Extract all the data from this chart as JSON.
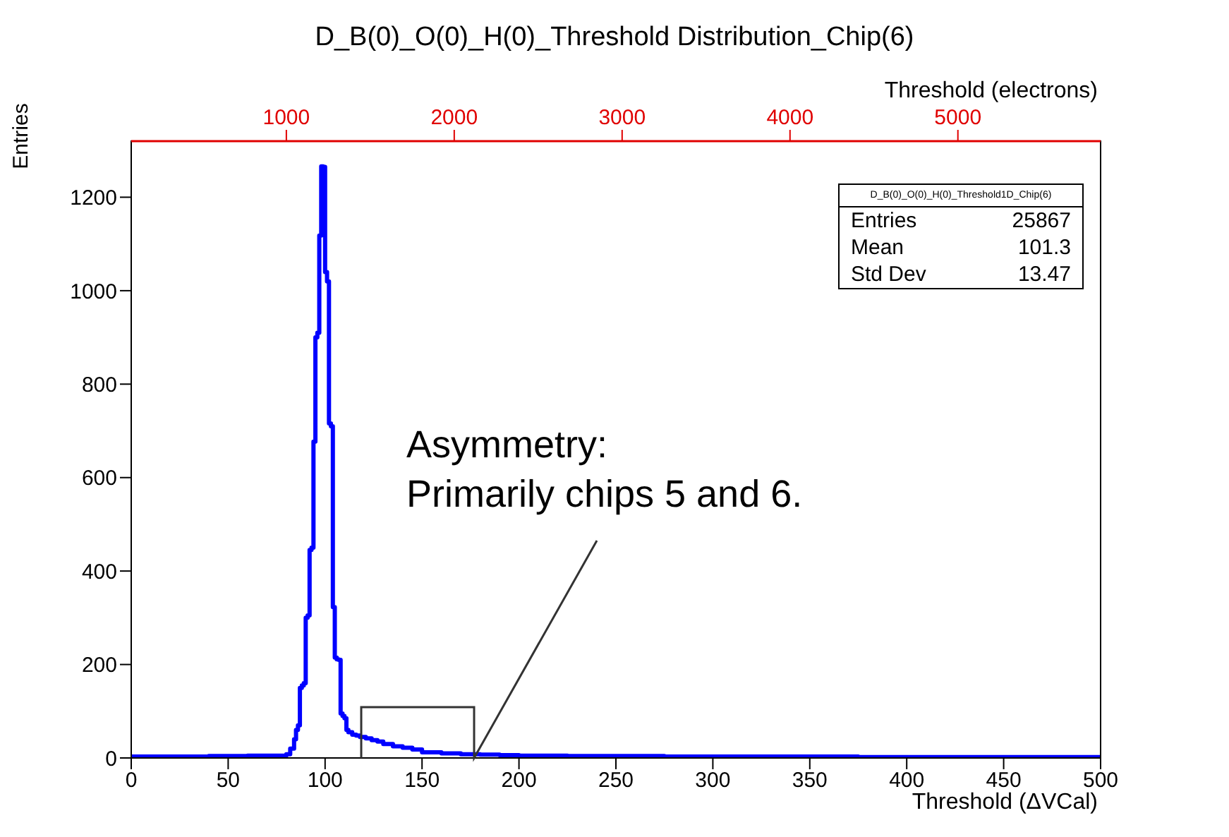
{
  "chart_data": {
    "type": "histogram",
    "title": "D_B(0)_O(0)_H(0)_Threshold Distribution_Chip(6)",
    "xlabel": "Threshold (ΔVCal)",
    "ylabel": "Entries",
    "x2label": "Threshold (electrons)",
    "bins": [
      0,
      20,
      40,
      60,
      80,
      82,
      84,
      85,
      86,
      87,
      88,
      89,
      90,
      91,
      92,
      93,
      94,
      95,
      96,
      97,
      98,
      99,
      100,
      101,
      102,
      103,
      104,
      105,
      106,
      107,
      108,
      109,
      110,
      111,
      112,
      114,
      116,
      118,
      121,
      124,
      127,
      130,
      135,
      140,
      145,
      150,
      160,
      170,
      180,
      190,
      200,
      225,
      250,
      275,
      300,
      325,
      350,
      375,
      400,
      425,
      450,
      475,
      500
    ],
    "values": [
      3,
      3,
      4,
      5,
      8,
      20,
      40,
      60,
      70,
      150,
      155,
      160,
      300,
      305,
      445,
      450,
      677,
      900,
      910,
      1118,
      1266,
      1265,
      1040,
      1020,
      716,
      710,
      323,
      215,
      211,
      210,
      95,
      90,
      85,
      60,
      55,
      50,
      48,
      45,
      42,
      38,
      35,
      30,
      25,
      22,
      18,
      12,
      10,
      8,
      7,
      6,
      5,
      4,
      4,
      3,
      3,
      3,
      3,
      2,
      2,
      2,
      2,
      2
    ],
    "color": "#0000ff",
    "xlim": [
      0,
      500
    ],
    "xticks": [
      0,
      50,
      100,
      150,
      200,
      250,
      300,
      350,
      400,
      450,
      500
    ],
    "ylim": [
      0,
      1320
    ],
    "yticks": [
      0,
      200,
      400,
      600,
      800,
      1000,
      1200
    ],
    "x2lim": [
      76,
      5850
    ],
    "x2ticks": [
      1000,
      2000,
      3000,
      4000,
      5000
    ],
    "grid": false,
    "legend": false,
    "annotations": [
      "D_B(0)_O(0)_H(0)_Threshold1D_Chip(6)",
      "Entries",
      "25867",
      "Mean",
      "101.3",
      "Std Dev",
      "13.47",
      "Asymmetry:",
      "Primarily chips 5 and 6."
    ]
  }
}
